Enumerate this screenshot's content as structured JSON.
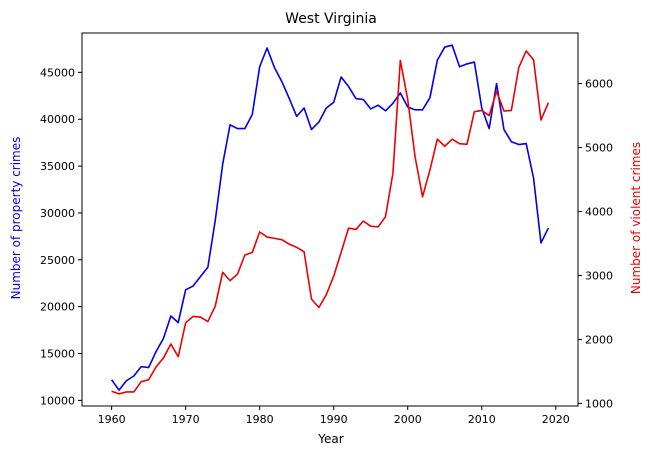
{
  "chart_data": {
    "type": "line",
    "title": "West Virginia",
    "xlabel": "Year",
    "ylabel_left": "Number of property crimes",
    "ylabel_right": "Number of violent crimes",
    "xlim": [
      1956,
      2023
    ],
    "ylim_left": [
      9400,
      49200
    ],
    "ylim_right": [
      960,
      6790
    ],
    "x_ticks": [
      1960,
      1970,
      1980,
      1990,
      2000,
      2010,
      2020
    ],
    "y_ticks_left": [
      10000,
      15000,
      20000,
      25000,
      30000,
      35000,
      40000,
      45000
    ],
    "y_ticks_right": [
      1000,
      2000,
      3000,
      4000,
      5000,
      6000
    ],
    "grid": false,
    "legend": "none",
    "x": [
      1960,
      1961,
      1962,
      1963,
      1964,
      1965,
      1966,
      1967,
      1968,
      1969,
      1970,
      1971,
      1972,
      1973,
      1974,
      1975,
      1976,
      1977,
      1978,
      1979,
      1980,
      1981,
      1982,
      1983,
      1984,
      1985,
      1986,
      1987,
      1988,
      1989,
      1990,
      1991,
      1992,
      1993,
      1994,
      1995,
      1996,
      1997,
      1998,
      1999,
      2000,
      2001,
      2002,
      2003,
      2004,
      2005,
      2006,
      2007,
      2008,
      2009,
      2010,
      2011,
      2012,
      2013,
      2014,
      2015,
      2016,
      2017,
      2018,
      2019
    ],
    "series": [
      {
        "axis": "left",
        "color": "#0000ee",
        "values": [
          12200,
          11100,
          12100,
          12600,
          13600,
          13500,
          15200,
          16600,
          19000,
          18300,
          21800,
          22200,
          23200,
          24200,
          29200,
          35200,
          39400,
          39000,
          39000,
          40500,
          45600,
          47600,
          45500,
          44000,
          42200,
          40300,
          41200,
          38900,
          39700,
          41200,
          41800,
          44500,
          43500,
          42200,
          42100,
          41100,
          41500,
          40900,
          41700,
          42800,
          41300,
          41000,
          41000,
          42300,
          46300,
          47700,
          47900,
          45600,
          45900,
          46100,
          41200,
          39000,
          43800,
          38900,
          37600,
          37300,
          37400,
          33700,
          26800,
          28400
        ]
      },
      {
        "axis": "right",
        "color": "#ee0000",
        "values": [
          1190,
          1150,
          1180,
          1180,
          1340,
          1370,
          1570,
          1710,
          1930,
          1730,
          2260,
          2360,
          2350,
          2280,
          2520,
          3050,
          2920,
          3020,
          3320,
          3360,
          3680,
          3600,
          3580,
          3560,
          3490,
          3440,
          3370,
          2630,
          2500,
          2700,
          2990,
          3360,
          3740,
          3720,
          3850,
          3770,
          3760,
          3920,
          4600,
          6360,
          5750,
          4850,
          4230,
          4650,
          5130,
          5020,
          5130,
          5060,
          5050,
          5560,
          5580,
          5500,
          5880,
          5570,
          5580,
          6250,
          6510,
          6370,
          5430,
          5700
        ]
      }
    ]
  }
}
